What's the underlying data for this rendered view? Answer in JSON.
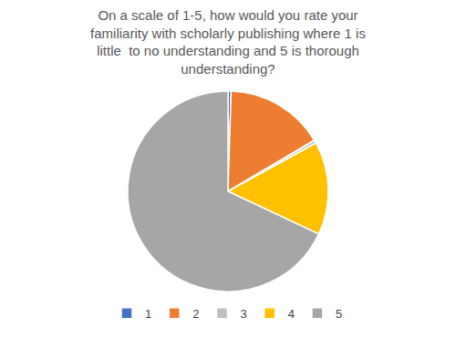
{
  "chart_data": {
    "type": "pie",
    "title": "On a scale of 1-5, how would you rate your\nfamiliarity with scholarly publishing where 1 is\nlittle  to no understanding and 5 is thorough\nunderstanding?",
    "categories": [
      "1",
      "2",
      "3",
      "4",
      "5"
    ],
    "values": [
      0.5,
      16,
      0.5,
      15,
      68
    ],
    "colors": [
      "#4472C4",
      "#ED7D31",
      "#BFBFBF",
      "#FFC000",
      "#A6A6A6"
    ],
    "legend": "bottom"
  }
}
